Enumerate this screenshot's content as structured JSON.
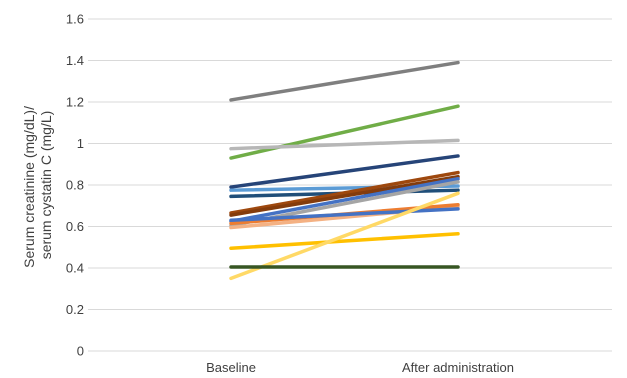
{
  "chart_data": {
    "type": "line",
    "title": "",
    "xlabel": "",
    "ylabel_lines": [
      "Serum creatinine (mg/dL)/",
      "serum cystatin C (mg/L)"
    ],
    "categories": [
      "Baseline",
      "After administration"
    ],
    "ylim": [
      0,
      1.6
    ],
    "y_ticks": [
      "0",
      "0.2",
      "0.4",
      "0.6",
      "0.8",
      "1",
      "1.2",
      "1.4",
      "1.6"
    ],
    "y_tick_values": [
      0,
      0.2,
      0.4,
      0.6,
      0.8,
      1.0,
      1.2,
      1.4,
      1.6
    ],
    "grid": true,
    "legend": "none",
    "series": [
      {
        "color": "#7f7f7f",
        "values": [
          1.21,
          1.39
        ]
      },
      {
        "color": "#70ad47",
        "values": [
          0.93,
          1.18
        ]
      },
      {
        "color": "#b7b7b7",
        "values": [
          0.975,
          1.015
        ]
      },
      {
        "color": "#264478",
        "values": [
          0.79,
          0.94
        ]
      },
      {
        "color": "#5b9bd5",
        "values": [
          0.775,
          0.795
        ]
      },
      {
        "color": "#1f4e79",
        "values": [
          0.745,
          0.775
        ]
      },
      {
        "color": "#9e480e",
        "values": [
          0.665,
          0.86
        ]
      },
      {
        "color": "#843c0c",
        "values": [
          0.655,
          0.84
        ]
      },
      {
        "color": "#4472c4",
        "values": [
          0.625,
          0.83
        ]
      },
      {
        "color": "#a5a5a5",
        "values": [
          0.605,
          0.815
        ]
      },
      {
        "color": "#f4b183",
        "values": [
          0.595,
          0.695
        ]
      },
      {
        "color": "#ed7d31",
        "values": [
          0.615,
          0.705
        ]
      },
      {
        "color": "#4472c4",
        "values": [
          0.63,
          0.685
        ]
      },
      {
        "color": "#ffc000",
        "values": [
          0.495,
          0.565
        ]
      },
      {
        "color": "#ffd966",
        "values": [
          0.35,
          0.76
        ]
      },
      {
        "color": "#375623",
        "values": [
          0.405,
          0.405
        ]
      }
    ]
  }
}
